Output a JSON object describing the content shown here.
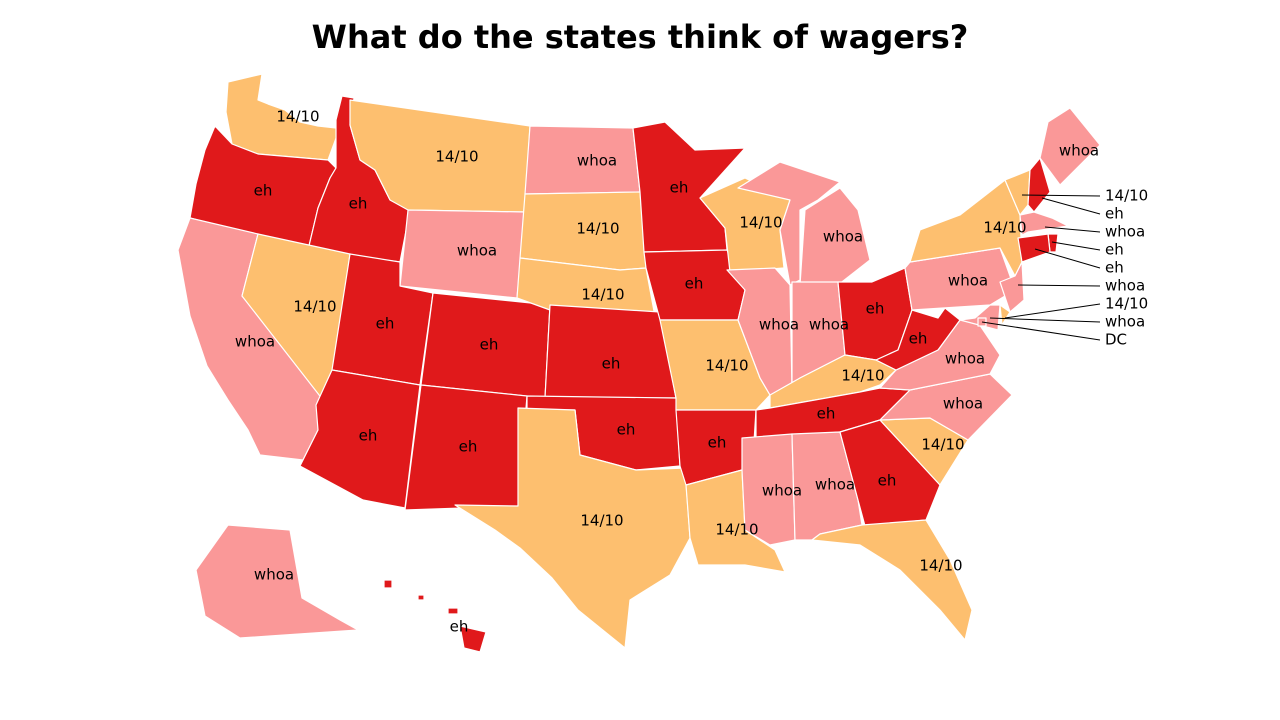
{
  "title": "What do the states think of wagers?",
  "colors": {
    "eh": "#e0191b",
    "whoa": "#fa9898",
    "14/10": "#fdbf6f"
  },
  "states": [
    {
      "id": "WA",
      "name": "Washington",
      "category": "14/10"
    },
    {
      "id": "OR",
      "name": "Oregon",
      "category": "eh"
    },
    {
      "id": "CA",
      "name": "California",
      "category": "whoa"
    },
    {
      "id": "ID",
      "name": "Idaho",
      "category": "eh"
    },
    {
      "id": "NV",
      "name": "Nevada",
      "category": "14/10"
    },
    {
      "id": "MT",
      "name": "Montana",
      "category": "14/10"
    },
    {
      "id": "WY",
      "name": "Wyoming",
      "category": "whoa"
    },
    {
      "id": "UT",
      "name": "Utah",
      "category": "eh"
    },
    {
      "id": "AZ",
      "name": "Arizona",
      "category": "eh"
    },
    {
      "id": "CO",
      "name": "Colorado",
      "category": "eh"
    },
    {
      "id": "NM",
      "name": "New Mexico",
      "category": "eh"
    },
    {
      "id": "ND",
      "name": "North Dakota",
      "category": "whoa"
    },
    {
      "id": "SD",
      "name": "South Dakota",
      "category": "14/10"
    },
    {
      "id": "NE",
      "name": "Nebraska",
      "category": "14/10"
    },
    {
      "id": "KS",
      "name": "Kansas",
      "category": "eh"
    },
    {
      "id": "OK",
      "name": "Oklahoma",
      "category": "eh"
    },
    {
      "id": "TX",
      "name": "Texas",
      "category": "14/10"
    },
    {
      "id": "MN",
      "name": "Minnesota",
      "category": "eh"
    },
    {
      "id": "IA",
      "name": "Iowa",
      "category": "eh"
    },
    {
      "id": "MO",
      "name": "Missouri",
      "category": "14/10"
    },
    {
      "id": "AR",
      "name": "Arkansas",
      "category": "eh"
    },
    {
      "id": "LA",
      "name": "Louisiana",
      "category": "14/10"
    },
    {
      "id": "WI",
      "name": "Wisconsin",
      "category": "14/10"
    },
    {
      "id": "IL",
      "name": "Illinois",
      "category": "whoa"
    },
    {
      "id": "MI",
      "name": "Michigan",
      "category": "whoa"
    },
    {
      "id": "IN",
      "name": "Indiana",
      "category": "whoa"
    },
    {
      "id": "OH",
      "name": "Ohio",
      "category": "eh"
    },
    {
      "id": "KY",
      "name": "Kentucky",
      "category": "14/10"
    },
    {
      "id": "TN",
      "name": "Tennessee",
      "category": "eh"
    },
    {
      "id": "MS",
      "name": "Mississippi",
      "category": "whoa"
    },
    {
      "id": "AL",
      "name": "Alabama",
      "category": "whoa"
    },
    {
      "id": "GA",
      "name": "Georgia",
      "category": "eh"
    },
    {
      "id": "FL",
      "name": "Florida",
      "category": "14/10"
    },
    {
      "id": "SC",
      "name": "South Carolina",
      "category": "14/10"
    },
    {
      "id": "NC",
      "name": "North Carolina",
      "category": "whoa"
    },
    {
      "id": "VA",
      "name": "Virginia",
      "category": "whoa"
    },
    {
      "id": "WV",
      "name": "West Virginia",
      "category": "eh"
    },
    {
      "id": "PA",
      "name": "Pennsylvania",
      "category": "whoa"
    },
    {
      "id": "NY",
      "name": "New York",
      "category": "14/10"
    },
    {
      "id": "ME",
      "name": "Maine",
      "category": "whoa"
    },
    {
      "id": "VT",
      "name": "Vermont",
      "category": "14/10"
    },
    {
      "id": "NH",
      "name": "New Hampshire",
      "category": "eh"
    },
    {
      "id": "MA",
      "name": "Massachusetts",
      "category": "whoa"
    },
    {
      "id": "RI",
      "name": "Rhode Island",
      "category": "eh"
    },
    {
      "id": "CT",
      "name": "Connecticut",
      "category": "eh"
    },
    {
      "id": "NJ",
      "name": "New Jersey",
      "category": "whoa"
    },
    {
      "id": "DE",
      "name": "Delaware",
      "category": "14/10"
    },
    {
      "id": "MD",
      "name": "Maryland",
      "category": "whoa"
    },
    {
      "id": "DC",
      "name": "District of Columbia",
      "category": "whoa"
    },
    {
      "id": "AK",
      "name": "Alaska",
      "category": "whoa"
    },
    {
      "id": "HI",
      "name": "Hawaii",
      "category": "eh"
    }
  ],
  "callouts": [
    {
      "id": "VT",
      "text": "14/10"
    },
    {
      "id": "NH",
      "text": "eh"
    },
    {
      "id": "MA",
      "text": "whoa"
    },
    {
      "id": "RI",
      "text": "eh"
    },
    {
      "id": "CT",
      "text": "eh"
    },
    {
      "id": "NJ",
      "text": "whoa"
    },
    {
      "id": "DE",
      "text": "14/10"
    },
    {
      "id": "MD",
      "text": "whoa"
    },
    {
      "id": "DC",
      "text": "DC"
    }
  ]
}
